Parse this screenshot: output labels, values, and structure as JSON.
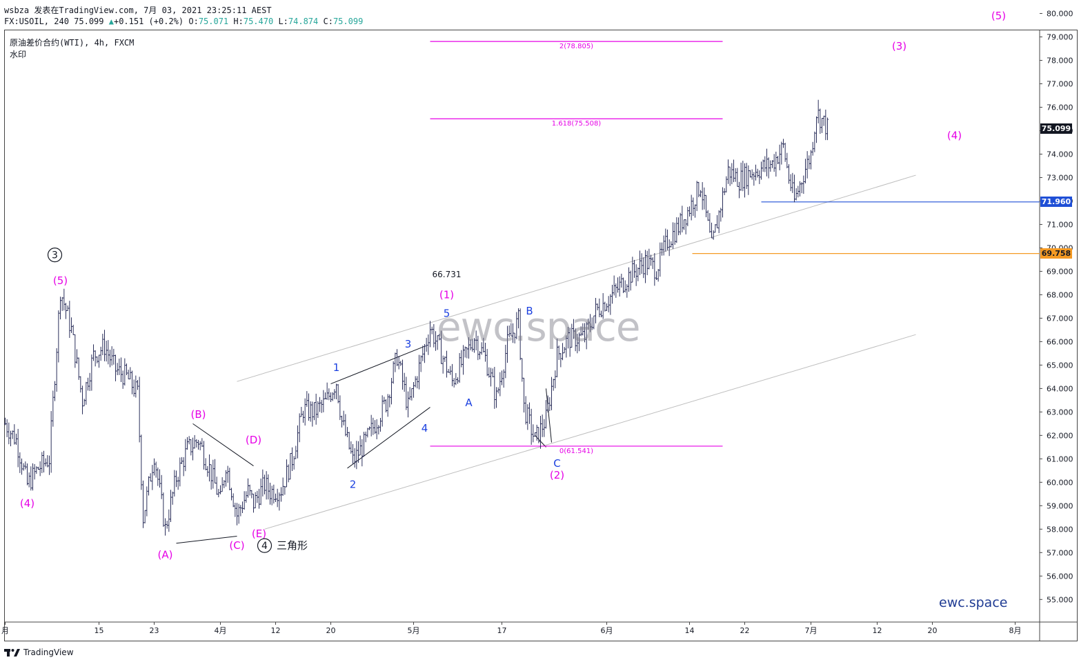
{
  "header": {
    "line1": "wsbza 发表在TradingView.com, 7月 03, 2021 23:25:11 AEST",
    "symbol": "FX:USOIL, 240 75.099",
    "change": "+0.151 (+0.2%)",
    "o_label": "O:",
    "o_val": "75.071",
    "h_label": "H:",
    "h_val": "75.470",
    "l_label": "L:",
    "l_val": "74.874",
    "c_label": "C:",
    "c_val": "75.099"
  },
  "chart_title": "原油差价合约(WTI), 4h, FXCM",
  "chart_subtitle": "水印",
  "watermark": "ewc.space",
  "brand": "ewc.space",
  "footer": {
    "label": "TradingView"
  },
  "price_tags": [
    {
      "value": "75.099",
      "bg": "#131722",
      "fg": "#ffffff"
    },
    {
      "value": "71.960",
      "bg": "#1f4fd6",
      "fg": "#ffffff"
    },
    {
      "value": "69.758",
      "bg": "#f59a23",
      "fg": "#131722"
    }
  ],
  "colors": {
    "up": "#26a69a",
    "wave": "#e600e6",
    "impulse": "#1a3fe0",
    "bar": "#2a2e5a"
  },
  "chart_data": {
    "type": "ohlc",
    "symbol": "FX:USOIL",
    "timeframe": "4h",
    "ylim": [
      54,
      80.8
    ],
    "y_ticks": [
      "80.000",
      "79.000",
      "78.000",
      "77.000",
      "76.000",
      "75.000",
      "74.000",
      "73.000",
      "72.000",
      "71.000",
      "70.000",
      "69.000",
      "68.000",
      "67.000",
      "66.000",
      "65.000",
      "64.000",
      "63.000",
      "62.000",
      "61.000",
      "60.000",
      "59.000",
      "58.000",
      "57.000",
      "56.000",
      "55.000"
    ],
    "x_ticks": [
      "月",
      "15",
      "23",
      "4月",
      "12",
      "20",
      "5月",
      "17",
      "6月",
      "14",
      "22",
      "7月",
      "12",
      "20",
      "8月"
    ],
    "x_tick_positions_t": [
      0,
      17,
      27,
      39,
      49,
      59,
      74,
      90,
      109,
      124,
      134,
      146,
      158,
      168,
      183
    ],
    "price_anchors": [
      [
        0,
        62.5
      ],
      [
        2,
        61.8
      ],
      [
        4,
        59.9
      ],
      [
        6,
        60.6
      ],
      [
        8,
        61.0
      ],
      [
        10,
        68.2
      ],
      [
        12,
        66.5
      ],
      [
        14,
        63.5
      ],
      [
        16,
        65.4
      ],
      [
        18,
        65.8
      ],
      [
        20,
        64.8
      ],
      [
        22,
        64.5
      ],
      [
        24,
        63.8
      ],
      [
        25,
        58.5
      ],
      [
        27,
        61.2
      ],
      [
        29,
        58.0
      ],
      [
        31,
        60.2
      ],
      [
        33,
        61.4
      ],
      [
        35,
        61.8
      ],
      [
        37,
        60.6
      ],
      [
        39,
        59.2
      ],
      [
        40,
        60.8
      ],
      [
        42,
        58.6
      ],
      [
        44,
        59.6
      ],
      [
        45,
        59.1
      ],
      [
        47,
        59.9
      ],
      [
        48,
        59.6
      ],
      [
        50,
        59.7
      ],
      [
        52,
        61.0
      ],
      [
        54,
        63.1
      ],
      [
        56,
        63.0
      ],
      [
        58,
        63.4
      ],
      [
        60,
        64.3
      ],
      [
        61,
        62.6
      ],
      [
        63,
        60.9
      ],
      [
        65,
        61.6
      ],
      [
        67,
        62.5
      ],
      [
        69,
        63.4
      ],
      [
        71,
        65.4
      ],
      [
        73,
        63.2
      ],
      [
        75,
        64.9
      ],
      [
        77,
        66.6
      ],
      [
        79,
        65.5
      ],
      [
        81,
        64.3
      ],
      [
        83,
        65.2
      ],
      [
        85,
        66.2
      ],
      [
        87,
        65.3
      ],
      [
        89,
        63.6
      ],
      [
        91,
        65.9
      ],
      [
        93,
        66.9
      ],
      [
        94,
        63.2
      ],
      [
        96,
        61.8
      ],
      [
        98,
        62.7
      ],
      [
        100,
        65.4
      ],
      [
        102,
        66.1
      ],
      [
        105,
        66.2
      ],
      [
        107,
        67.3
      ],
      [
        110,
        68.0
      ],
      [
        113,
        68.8
      ],
      [
        116,
        69.4
      ],
      [
        118,
        69.1
      ],
      [
        120,
        70.3
      ],
      [
        122,
        70.9
      ],
      [
        124,
        71.7
      ],
      [
        126,
        72.7
      ],
      [
        128,
        70.0
      ],
      [
        130,
        72.2
      ],
      [
        131,
        73.3
      ],
      [
        133,
        72.9
      ],
      [
        135,
        73.2
      ],
      [
        137,
        73.4
      ],
      [
        139,
        73.6
      ],
      [
        141,
        74.3
      ],
      [
        142,
        73.0
      ],
      [
        143,
        72.0
      ],
      [
        145,
        73.4
      ],
      [
        146,
        74.0
      ],
      [
        147,
        75.8
      ],
      [
        149,
        75.1
      ]
    ],
    "horizontal_levels": [
      {
        "label": "2(78.805)",
        "value": 78.805,
        "color": "#e600e6"
      },
      {
        "label": "1.618(75.508)",
        "value": 75.508,
        "color": "#e600e6"
      },
      {
        "label": "0(61.541)",
        "value": 61.541,
        "color": "#e600e6"
      },
      {
        "value": 71.96,
        "color": "#1f4fd6"
      },
      {
        "value": 69.758,
        "color": "#f59a23"
      }
    ],
    "wave_labels": [
      {
        "text": "(5)",
        "t": 10,
        "price": 68.6,
        "color": "#e600e6"
      },
      {
        "text": "(4)",
        "t": 4,
        "price": 59.1,
        "color": "#e600e6"
      },
      {
        "text": "(A)",
        "t": 29,
        "price": 56.9,
        "color": "#e600e6"
      },
      {
        "text": "(B)",
        "t": 35,
        "price": 62.9,
        "color": "#e600e6"
      },
      {
        "text": "(C)",
        "t": 42,
        "price": 57.3,
        "color": "#e600e6"
      },
      {
        "text": "(D)",
        "t": 45,
        "price": 61.8,
        "color": "#e600e6"
      },
      {
        "text": "(E)",
        "t": 46,
        "price": 57.8,
        "color": "#e600e6"
      },
      {
        "text": "三角形",
        "t": 52,
        "price": 57.3,
        "color": "#131722"
      },
      {
        "text": "1",
        "t": 60,
        "price": 64.9,
        "color": "#1a3fe0"
      },
      {
        "text": "2",
        "t": 63,
        "price": 59.9,
        "color": "#1a3fe0"
      },
      {
        "text": "3",
        "t": 73,
        "price": 65.9,
        "color": "#1a3fe0"
      },
      {
        "text": "4",
        "t": 76,
        "price": 62.3,
        "color": "#1a3fe0"
      },
      {
        "text": "5",
        "t": 80,
        "price": 67.2,
        "color": "#1a3fe0"
      },
      {
        "text": "(1)",
        "t": 80,
        "price": 68.0,
        "color": "#e600e6"
      },
      {
        "text": "66.731",
        "t": 80,
        "price": 68.9,
        "color": "#131722"
      },
      {
        "text": "A",
        "t": 84,
        "price": 63.4,
        "color": "#1a3fe0"
      },
      {
        "text": "B",
        "t": 95,
        "price": 67.3,
        "color": "#1a3fe0"
      },
      {
        "text": "C",
        "t": 100,
        "price": 60.8,
        "color": "#1a3fe0"
      },
      {
        "text": "(2)",
        "t": 100,
        "price": 60.3,
        "color": "#e600e6"
      },
      {
        "text": "(3)",
        "t": 162,
        "price": 78.6,
        "color": "#e600e6"
      },
      {
        "text": "(4)",
        "t": 172,
        "price": 74.8,
        "color": "#e600e6"
      },
      {
        "text": "(5)",
        "t": 180,
        "price": 79.9,
        "color": "#e600e6"
      }
    ],
    "circled_labels": [
      {
        "text": "3",
        "t": 9,
        "price": 69.7
      },
      {
        "text": "4",
        "t": 47,
        "price": 57.3
      }
    ],
    "trendlines": [
      {
        "from": [
          42,
          64.3
        ],
        "to": [
          165,
          73.1
        ],
        "color": "#bdbdbd"
      },
      {
        "from": [
          47,
          58.0
        ],
        "to": [
          165,
          66.3
        ],
        "color": "#bdbdbd"
      },
      {
        "from": [
          31,
          57.4
        ],
        "to": [
          42,
          57.7
        ],
        "color": "#131722"
      },
      {
        "from": [
          34,
          62.5
        ],
        "to": [
          45,
          60.7
        ],
        "color": "#131722"
      },
      {
        "from": [
          59,
          64.2
        ],
        "to": [
          76,
          65.8
        ],
        "color": "#131722"
      },
      {
        "from": [
          62,
          60.6
        ],
        "to": [
          77,
          63.2
        ],
        "color": "#131722"
      },
      {
        "from": [
          96,
          62.0
        ],
        "to": [
          98,
          61.5
        ],
        "color": "#131722"
      },
      {
        "from": [
          98,
          64.0
        ],
        "to": [
          99,
          61.7
        ],
        "color": "#131722"
      }
    ]
  }
}
